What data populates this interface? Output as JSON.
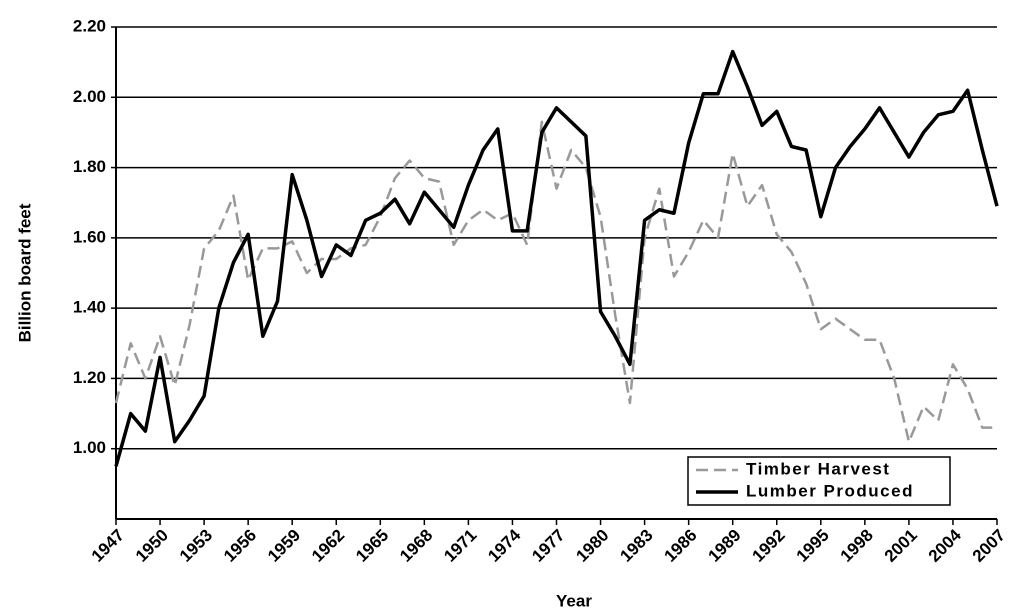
{
  "chart_data": {
    "type": "line",
    "x_label": "Year",
    "y_label": "Billion board feet",
    "x": [
      1947,
      1948,
      1949,
      1950,
      1951,
      1952,
      1953,
      1954,
      1955,
      1956,
      1957,
      1958,
      1959,
      1960,
      1961,
      1962,
      1963,
      1964,
      1965,
      1966,
      1967,
      1968,
      1969,
      1970,
      1971,
      1972,
      1973,
      1974,
      1975,
      1976,
      1977,
      1978,
      1979,
      1980,
      1981,
      1982,
      1983,
      1984,
      1985,
      1986,
      1987,
      1988,
      1989,
      1990,
      1991,
      1992,
      1993,
      1994,
      1995,
      1996,
      1997,
      1998,
      1999,
      2000,
      2001,
      2002,
      2003,
      2004,
      2005,
      2006,
      2007
    ],
    "series": [
      {
        "name": "Timber Harvest",
        "color": "#999999",
        "dash": true,
        "values": [
          1.13,
          1.3,
          1.2,
          1.32,
          1.18,
          1.35,
          1.57,
          1.62,
          1.72,
          1.48,
          1.57,
          1.57,
          1.59,
          1.5,
          1.54,
          1.54,
          1.57,
          1.58,
          1.66,
          1.77,
          1.82,
          1.77,
          1.76,
          1.58,
          1.65,
          1.68,
          1.65,
          1.67,
          1.58,
          1.93,
          1.74,
          1.85,
          1.8,
          1.66,
          1.38,
          1.13,
          1.6,
          1.74,
          1.49,
          1.56,
          1.65,
          1.6,
          1.84,
          1.69,
          1.75,
          1.61,
          1.56,
          1.47,
          1.34,
          1.37,
          1.34,
          1.31,
          1.31,
          1.2,
          1.02,
          1.12,
          1.08,
          1.24,
          1.17,
          1.06,
          1.06
        ]
      },
      {
        "name": "Lumber Produced",
        "color": "#000000",
        "dash": false,
        "values": [
          0.95,
          1.1,
          1.05,
          1.26,
          1.02,
          1.08,
          1.15,
          1.4,
          1.53,
          1.61,
          1.32,
          1.42,
          1.78,
          1.65,
          1.49,
          1.58,
          1.55,
          1.65,
          1.67,
          1.71,
          1.64,
          1.73,
          1.68,
          1.63,
          1.75,
          1.85,
          1.91,
          1.62,
          1.62,
          1.9,
          1.97,
          1.93,
          1.89,
          1.39,
          1.32,
          1.24,
          1.65,
          1.68,
          1.67,
          1.87,
          2.01,
          2.01,
          2.13,
          2.03,
          1.92,
          1.96,
          1.86,
          1.85,
          1.66,
          1.8,
          1.86,
          1.91,
          1.97,
          1.9,
          1.83,
          1.9,
          1.95,
          1.96,
          2.02,
          1.85,
          1.69
        ]
      }
    ],
    "xlim": [
      1947,
      2007
    ],
    "xticks": [
      1947,
      1950,
      1953,
      1956,
      1959,
      1962,
      1965,
      1968,
      1971,
      1974,
      1977,
      1980,
      1983,
      1986,
      1989,
      1992,
      1995,
      1998,
      2001,
      2004,
      2007
    ],
    "ylim": [
      0.8,
      2.2
    ],
    "yticks": [
      {
        "value": 1.0,
        "label": "1.00"
      },
      {
        "value": 1.2,
        "label": "1.20"
      },
      {
        "value": 1.4,
        "label": "1.40"
      },
      {
        "value": 1.6,
        "label": "1.60"
      },
      {
        "value": 1.8,
        "label": "1.80"
      },
      {
        "value": 2.0,
        "label": "2.00"
      },
      {
        "value": 2.2,
        "label": "2.20"
      }
    ],
    "grid": true,
    "legend": "lower right"
  }
}
